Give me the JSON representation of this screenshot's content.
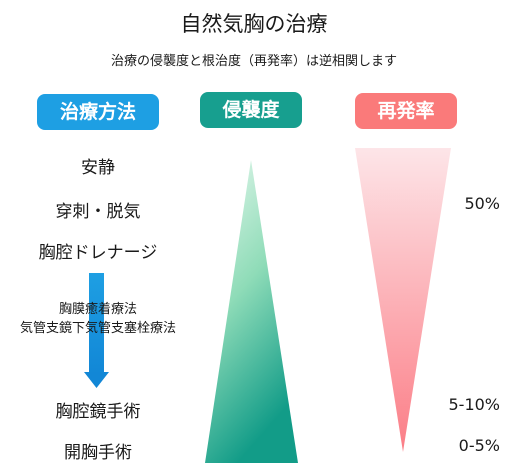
{
  "header": {
    "title": "自然気胸の治療",
    "subtitle": "治療の侵襲度と根治度（再発率）は逆相関します"
  },
  "columns": {
    "method": {
      "label": "治療方法",
      "color": "#1e9fe3"
    },
    "invasiveness": {
      "label": "侵襲度",
      "color": "#179f8f"
    },
    "recurrence": {
      "label": "再発率",
      "color": "#fa7a7a"
    }
  },
  "treatments": {
    "t1": "安静",
    "t2": "穿刺・脱気",
    "t3": "胸腔ドレナージ",
    "m1": "胸膜癒着療法",
    "m2": "気管支鏡下気管支塞栓療法",
    "t4": "胸腔鏡手術",
    "t5": "開胸手術"
  },
  "recurrence_rates": {
    "r1": "50%",
    "r2": "5-10%",
    "r3": "0-5%"
  },
  "arrow": {
    "direction": "down",
    "color": "#1e9fe3"
  },
  "gradients": {
    "invasiveness_top": "#e6f8ee",
    "invasiveness_bottom": "#129c88",
    "recurrence_top": "#fde5e8",
    "recurrence_bottom": "#fb7d86"
  }
}
